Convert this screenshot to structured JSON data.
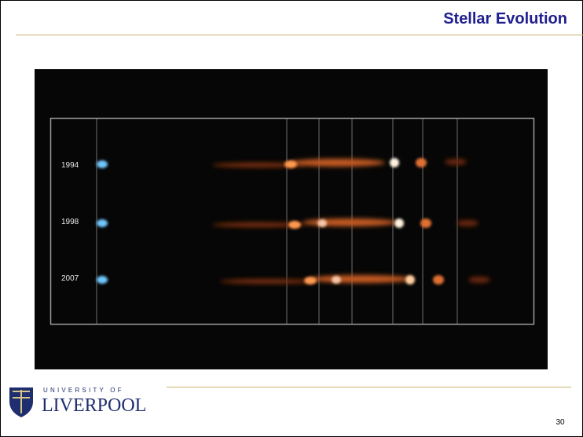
{
  "header": {
    "title": "Stellar Evolution"
  },
  "image": {
    "labels": [
      "1994",
      "1998",
      "2007"
    ]
  },
  "logo": {
    "line1": "UNIVERSITY OF",
    "line2": "LIVERPOOL"
  },
  "footer": {
    "page_number": "30"
  }
}
